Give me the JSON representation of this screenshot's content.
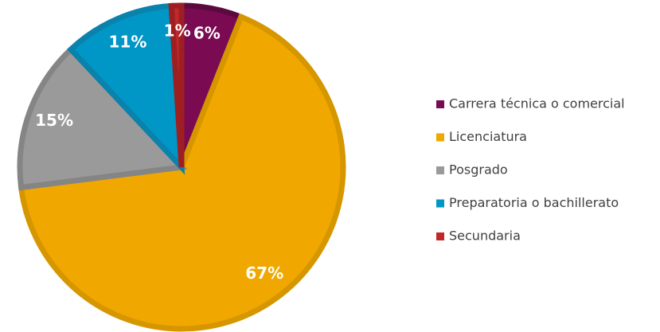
{
  "chart_data": {
    "type": "pie",
    "categories": [
      "Carrera técnica o comercial",
      "Licenciatura",
      "Posgrado",
      "Preparatoria o bachillerato",
      "Secundaria"
    ],
    "values": [
      6,
      67,
      15,
      11,
      1
    ],
    "value_labels": [
      "6%",
      "67%",
      "15%",
      "11%",
      "1%"
    ],
    "colors": [
      "#7a0a52",
      "#f0a800",
      "#9a9a9a",
      "#0096c6",
      "#c0282c"
    ],
    "borders": [
      "#5c0a3e",
      "#d69600",
      "#858585",
      "#0a82ac",
      "#9e1f22"
    ],
    "legend": "right"
  }
}
